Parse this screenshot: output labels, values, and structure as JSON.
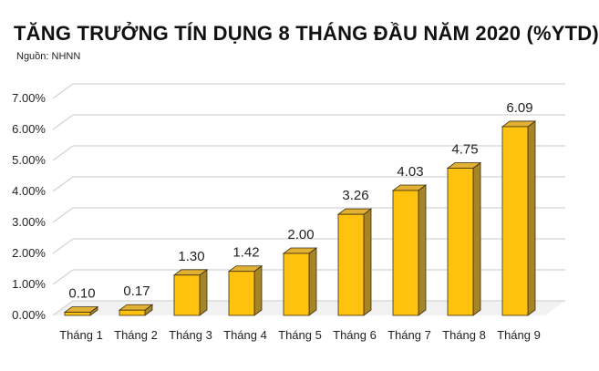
{
  "title": "TĂNG TRƯỞNG TÍN DỤNG 8 THÁNG ĐẦU NĂM 2020 (%YTD)",
  "source": "Nguồn: NHNN",
  "chart_data": {
    "type": "bar",
    "title": "TĂNG TRƯỞNG TÍN DỤNG 8 THÁNG ĐẦU NĂM 2020 (%YTD)",
    "xlabel": "",
    "ylabel": "",
    "categories": [
      "Tháng 1",
      "Tháng 2",
      "Tháng 3",
      "Tháng 4",
      "Tháng 5",
      "Tháng 6",
      "Tháng 7",
      "Tháng 8",
      "Tháng 9"
    ],
    "values": [
      0.1,
      0.17,
      1.3,
      1.42,
      2.0,
      3.26,
      4.03,
      4.75,
      6.09
    ],
    "data_labels": [
      "0.10",
      "0.17",
      "1.30",
      "1.42",
      "2.00",
      "3.26",
      "4.03",
      "4.75",
      "6.09"
    ],
    "yticks": [
      "0.00%",
      "1.00%",
      "2.00%",
      "3.00%",
      "4.00%",
      "5.00%",
      "6.00%",
      "7.00%"
    ],
    "ylim": [
      0,
      7
    ],
    "grid": true,
    "legend": "none",
    "colors": {
      "bar_front": "#FFC20E",
      "bar_side": "#A6842A",
      "bar_top": "#E2B033",
      "grid": "#C8C8C8",
      "floor": "#D9D9D9"
    }
  }
}
